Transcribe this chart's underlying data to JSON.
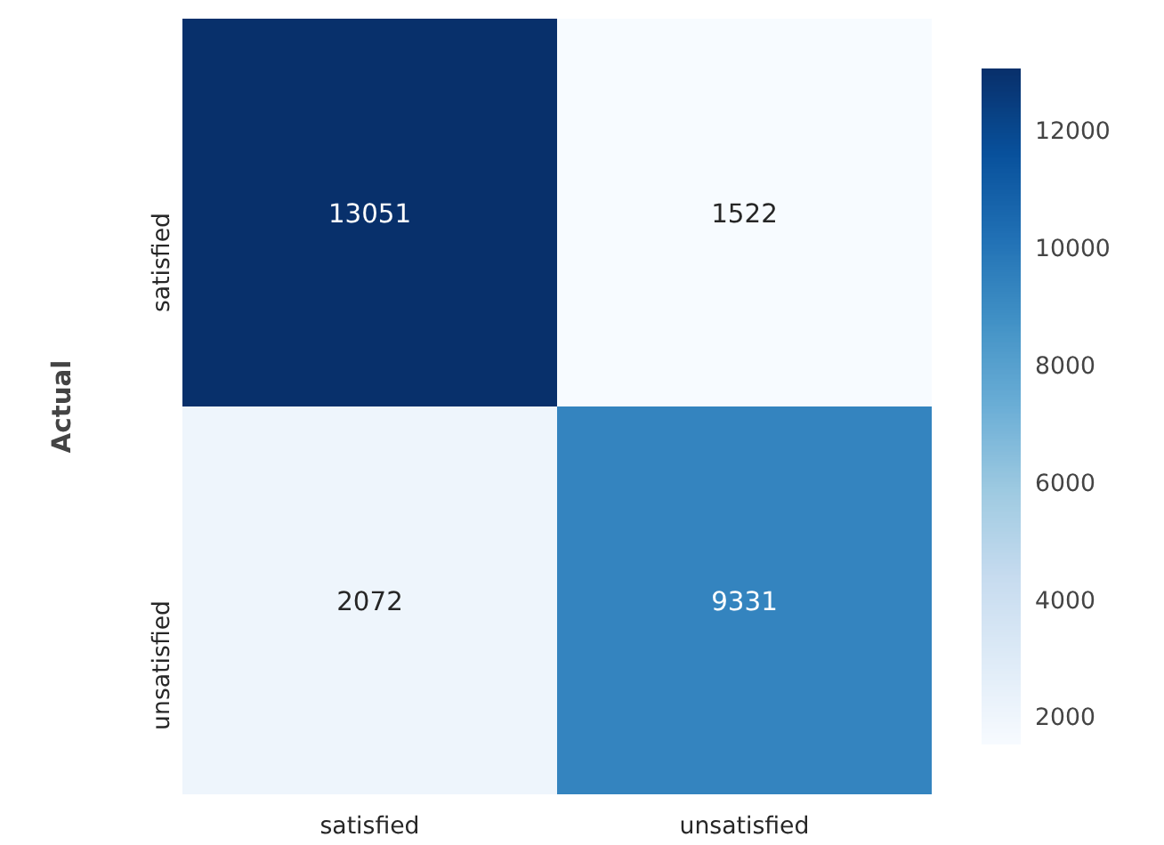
{
  "chart_data": {
    "type": "heatmap",
    "ylabel": "Actual",
    "categories": [
      "satisfied",
      "unsatisfied"
    ],
    "y_categories": [
      "satisfied",
      "unsatisfied"
    ],
    "cells": [
      [
        13051,
        1522
      ],
      [
        2072,
        9331
      ]
    ],
    "clim": [
      1522,
      13051
    ],
    "cticks": [
      2000,
      4000,
      6000,
      8000,
      10000,
      12000
    ],
    "data_labels": true
  }
}
